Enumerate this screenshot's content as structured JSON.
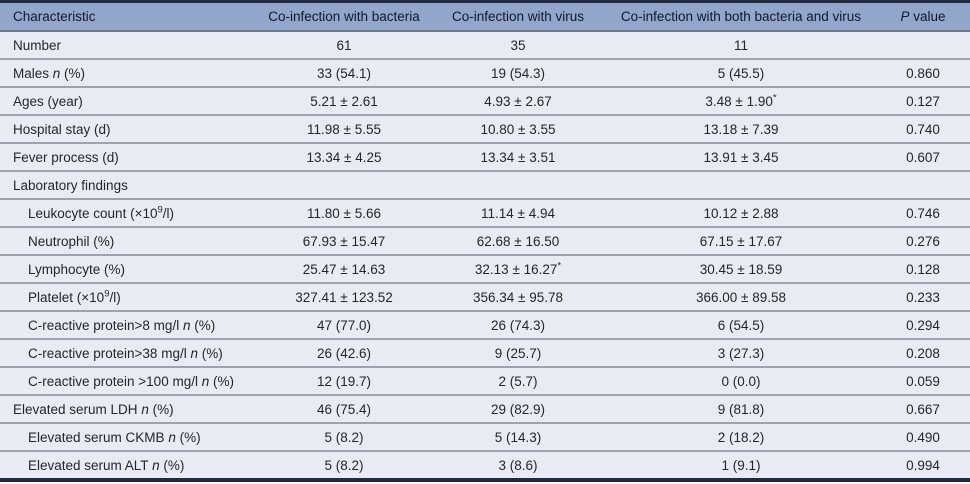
{
  "table": {
    "columns": [
      {
        "key": "characteristic",
        "label": "Characteristic"
      },
      {
        "key": "bacteria",
        "label": "Co-infection with bacteria"
      },
      {
        "key": "virus",
        "label": "Co-infection with virus"
      },
      {
        "key": "both",
        "label": "Co-infection with both bacteria and virus"
      },
      {
        "key": "p_value",
        "label": "*P* value"
      }
    ],
    "rows": [
      {
        "label": "Number",
        "indent": false,
        "cells": [
          "61",
          "35",
          "11",
          ""
        ]
      },
      {
        "label": "Males *n* (%)",
        "indent": false,
        "cells": [
          "33 (54.1)",
          "19 (54.3)",
          "5 (45.5)",
          "0.860"
        ]
      },
      {
        "label": "Ages (year)",
        "indent": false,
        "cells": [
          "5.21 ± 2.61",
          "4.93 ± 2.67",
          "3.48 ± 1.90^*^",
          "0.127"
        ]
      },
      {
        "label": "Hospital stay (d)",
        "indent": false,
        "cells": [
          "11.98 ± 5.55",
          "10.80 ± 3.55",
          "13.18 ± 7.39",
          "0.740"
        ]
      },
      {
        "label": "Fever process (d)",
        "indent": false,
        "cells": [
          "13.34 ± 4.25",
          "13.34 ± 3.51",
          "13.91 ± 3.45",
          "0.607"
        ]
      },
      {
        "label": "Laboratory findings",
        "indent": false,
        "cells": [
          "",
          "",
          "",
          ""
        ]
      },
      {
        "label": "Leukocyte count (×10^9^/l)",
        "indent": true,
        "cells": [
          "11.80 ± 5.66",
          "11.14 ± 4.94",
          "10.12 ± 2.88",
          "0.746"
        ]
      },
      {
        "label": "Neutrophil (%)",
        "indent": true,
        "cells": [
          "67.93 ± 15.47",
          "62.68 ± 16.50",
          "67.15 ± 17.67",
          "0.276"
        ]
      },
      {
        "label": "Lymphocyte (%)",
        "indent": true,
        "cells": [
          "25.47 ± 14.63",
          "32.13 ± 16.27^*^",
          "30.45 ± 18.59",
          "0.128"
        ]
      },
      {
        "label": "Platelet (×10^9^/l)",
        "indent": true,
        "cells": [
          "327.41 ± 123.52",
          "356.34 ± 95.78",
          "366.00 ± 89.58",
          "0.233"
        ]
      },
      {
        "label": "C-reactive protein>8 mg/l *n* (%)",
        "indent": true,
        "cells": [
          "47 (77.0)",
          "26 (74.3)",
          "6 (54.5)",
          "0.294"
        ]
      },
      {
        "label": "C-reactive protein>38 mg/l *n* (%)",
        "indent": true,
        "cells": [
          "26 (42.6)",
          "9 (25.7)",
          "3 (27.3)",
          "0.208"
        ]
      },
      {
        "label": "C-reactive protein >100 mg/l *n* (%)",
        "indent": true,
        "cells": [
          "12 (19.7)",
          "2 (5.7)",
          "0 (0.0)",
          "0.059"
        ]
      },
      {
        "label": "Elevated serum LDH *n* (%)",
        "indent": false,
        "cells": [
          "46 (75.4)",
          "29 (82.9)",
          "9 (81.8)",
          "0.667"
        ]
      },
      {
        "label": "Elevated serum CKMB *n* (%)",
        "indent": true,
        "cells": [
          "5 (8.2)",
          "5 (14.3)",
          "2 (18.2)",
          "0.490"
        ]
      },
      {
        "label": "Elevated serum ALT *n* (%)",
        "indent": true,
        "cells": [
          "5 (8.2)",
          "3 (8.6)",
          "1 (9.1)",
          "0.994"
        ]
      }
    ]
  },
  "colors": {
    "header_bg": "#92a6cb",
    "header_text": "#10192b",
    "header_separator": "#6e788d",
    "outer_border": "#212a40",
    "row_bg": "#e9ebf4",
    "row_separator": "#9da2ae",
    "body_text": "#23262b"
  }
}
